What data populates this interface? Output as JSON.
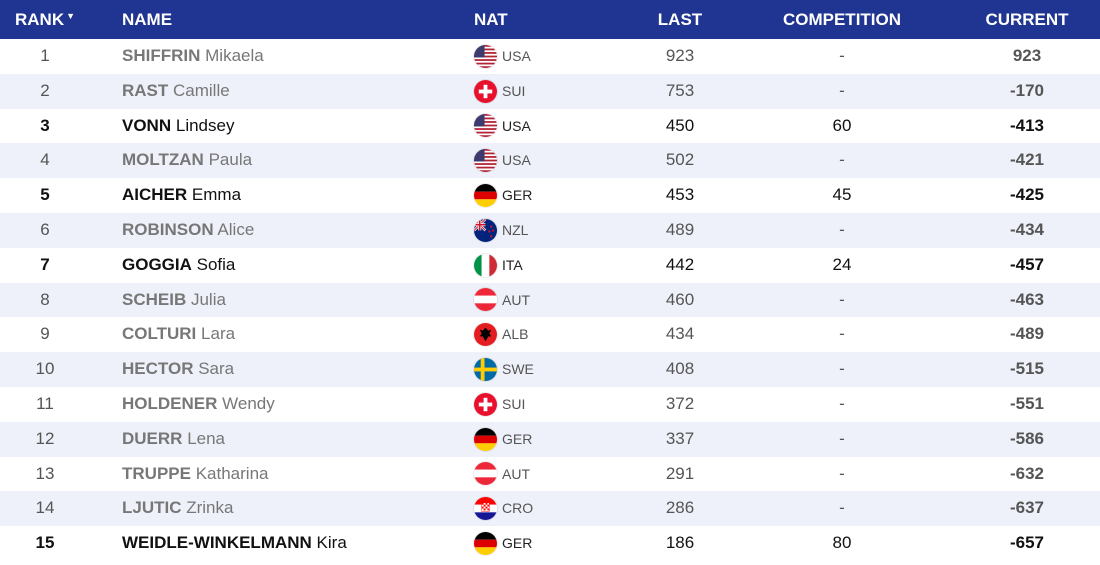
{
  "header": {
    "rank": "RANK",
    "name": "NAME",
    "nat": "NAT",
    "last": "LAST",
    "competition": "COMPETITION",
    "current": "CURRENT"
  },
  "rows": [
    {
      "rank": "1",
      "surname": "SHIFFRIN",
      "given": "Mikaela",
      "nat": "USA",
      "flag": "usa-flag-icon",
      "last": "923",
      "competition": "-",
      "current": "923",
      "bold": false
    },
    {
      "rank": "2",
      "surname": "RAST",
      "given": "Camille",
      "nat": "SUI",
      "flag": "sui-flag-icon",
      "last": "753",
      "competition": "-",
      "current": "-170",
      "bold": false
    },
    {
      "rank": "3",
      "surname": "VONN",
      "given": "Lindsey",
      "nat": "USA",
      "flag": "usa-flag-icon",
      "last": "450",
      "competition": "60",
      "current": "-413",
      "bold": true
    },
    {
      "rank": "4",
      "surname": "MOLTZAN",
      "given": "Paula",
      "nat": "USA",
      "flag": "usa-flag-icon",
      "last": "502",
      "competition": "-",
      "current": "-421",
      "bold": false
    },
    {
      "rank": "5",
      "surname": "AICHER",
      "given": "Emma",
      "nat": "GER",
      "flag": "ger-flag-icon",
      "last": "453",
      "competition": "45",
      "current": "-425",
      "bold": true
    },
    {
      "rank": "6",
      "surname": "ROBINSON",
      "given": "Alice",
      "nat": "NZL",
      "flag": "nzl-flag-icon",
      "last": "489",
      "competition": "-",
      "current": "-434",
      "bold": false
    },
    {
      "rank": "7",
      "surname": "GOGGIA",
      "given": "Sofia",
      "nat": "ITA",
      "flag": "ita-flag-icon",
      "last": "442",
      "competition": "24",
      "current": "-457",
      "bold": true
    },
    {
      "rank": "8",
      "surname": "SCHEIB",
      "given": "Julia",
      "nat": "AUT",
      "flag": "aut-flag-icon",
      "last": "460",
      "competition": "-",
      "current": "-463",
      "bold": false
    },
    {
      "rank": "9",
      "surname": "COLTURI",
      "given": "Lara",
      "nat": "ALB",
      "flag": "alb-flag-icon",
      "last": "434",
      "competition": "-",
      "current": "-489",
      "bold": false
    },
    {
      "rank": "10",
      "surname": "HECTOR",
      "given": "Sara",
      "nat": "SWE",
      "flag": "swe-flag-icon",
      "last": "408",
      "competition": "-",
      "current": "-515",
      "bold": false
    },
    {
      "rank": "11",
      "surname": "HOLDENER",
      "given": "Wendy",
      "nat": "SUI",
      "flag": "sui-flag-icon",
      "last": "372",
      "competition": "-",
      "current": "-551",
      "bold": false
    },
    {
      "rank": "12",
      "surname": "DUERR",
      "given": "Lena",
      "nat": "GER",
      "flag": "ger-flag-icon",
      "last": "337",
      "competition": "-",
      "current": "-586",
      "bold": false
    },
    {
      "rank": "13",
      "surname": "TRUPPE",
      "given": "Katharina",
      "nat": "AUT",
      "flag": "aut-flag-icon",
      "last": "291",
      "competition": "-",
      "current": "-632",
      "bold": false
    },
    {
      "rank": "14",
      "surname": "LJUTIC",
      "given": "Zrinka",
      "nat": "CRO",
      "flag": "cro-flag-icon",
      "last": "286",
      "competition": "-",
      "current": "-637",
      "bold": false
    },
    {
      "rank": "15",
      "surname": "WEIDLE-WINKELMANN",
      "given": "Kira",
      "nat": "GER",
      "flag": "ger-flag-icon",
      "last": "186",
      "competition": "80",
      "current": "-657",
      "bold": true
    }
  ],
  "colors": {
    "header_bg": "#1f3591",
    "row_alt_bg": "#eef1f9"
  }
}
